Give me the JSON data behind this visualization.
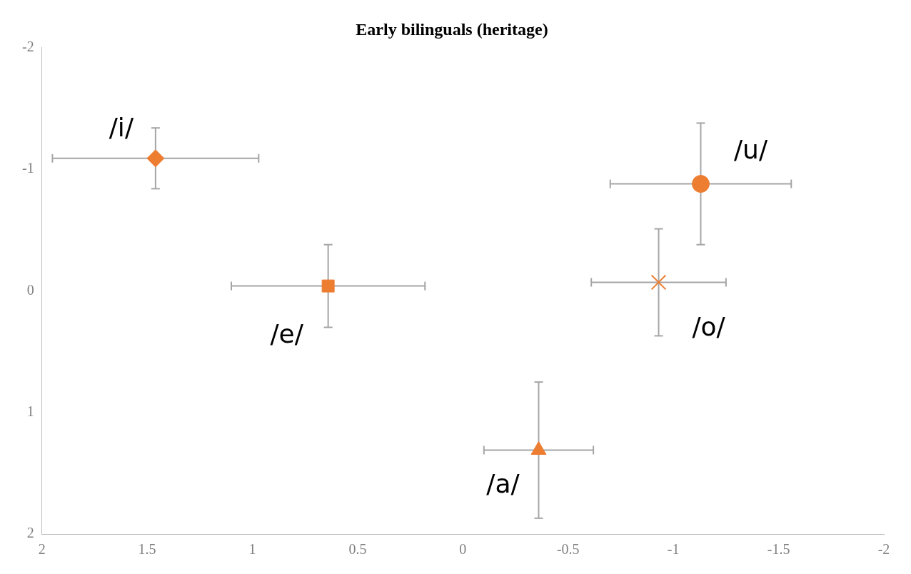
{
  "chart_data": {
    "type": "scatter",
    "title": "Early bilinguals (heritage)",
    "xlim": [
      2,
      -2
    ],
    "xticks": [
      2,
      1.5,
      1,
      0.5,
      0,
      -0.5,
      -1,
      -1.5,
      -2
    ],
    "ylim": [
      2,
      -2
    ],
    "yticks": [
      -2,
      -1,
      0,
      1,
      2
    ],
    "legend": false,
    "series": [
      {
        "name": "/i/",
        "color": "#ed7d31",
        "marker": "diamond",
        "x": [
          1.46
        ],
        "values": [
          -1.09
        ],
        "errors": [
          0.25
        ],
        "xerrors": [
          0.49
        ]
      },
      {
        "name": "/e/",
        "color": "#ed7d31",
        "marker": "square",
        "x": [
          0.64
        ],
        "values": [
          -0.04
        ],
        "errors": [
          0.34
        ],
        "xerrors": [
          0.46
        ]
      },
      {
        "name": "/a/",
        "color": "#ed7d31",
        "marker": "triangle",
        "x": [
          -0.36
        ],
        "values": [
          1.31
        ],
        "errors": [
          0.56
        ],
        "xerrors": [
          0.26
        ]
      },
      {
        "name": "/u/",
        "color": "#ed7d31",
        "marker": "circle",
        "x": [
          -1.13
        ],
        "values": [
          -0.88
        ],
        "errors": [
          0.5
        ],
        "xerrors": [
          0.43
        ]
      },
      {
        "name": "/o/",
        "color": "#ed7d31",
        "marker": "cross",
        "x": [
          -0.93
        ],
        "values": [
          -0.07
        ],
        "errors": [
          0.44
        ],
        "xerrors": [
          0.32
        ]
      }
    ]
  }
}
